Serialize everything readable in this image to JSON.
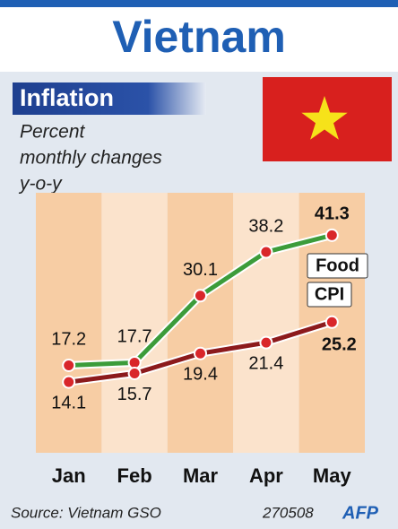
{
  "chart_data": {
    "type": "line",
    "title": "Vietnam",
    "subtitle": "Inflation",
    "y_label": [
      "Percent",
      "monthly changes",
      "y-o-y"
    ],
    "categories": [
      "Jan",
      "Feb",
      "Mar",
      "Apr",
      "May"
    ],
    "series": [
      {
        "name": "Food",
        "color": "#3c9c3a",
        "values": [
          17.2,
          17.7,
          30.1,
          38.2,
          41.3
        ]
      },
      {
        "name": "CPI",
        "color": "#8c1a1c",
        "values": [
          14.1,
          15.7,
          19.4,
          21.4,
          25.2
        ]
      }
    ],
    "ylim": [
      0,
      50
    ],
    "source": "Source: Vietnam GSO",
    "code": "270508",
    "logo": "AFP"
  }
}
